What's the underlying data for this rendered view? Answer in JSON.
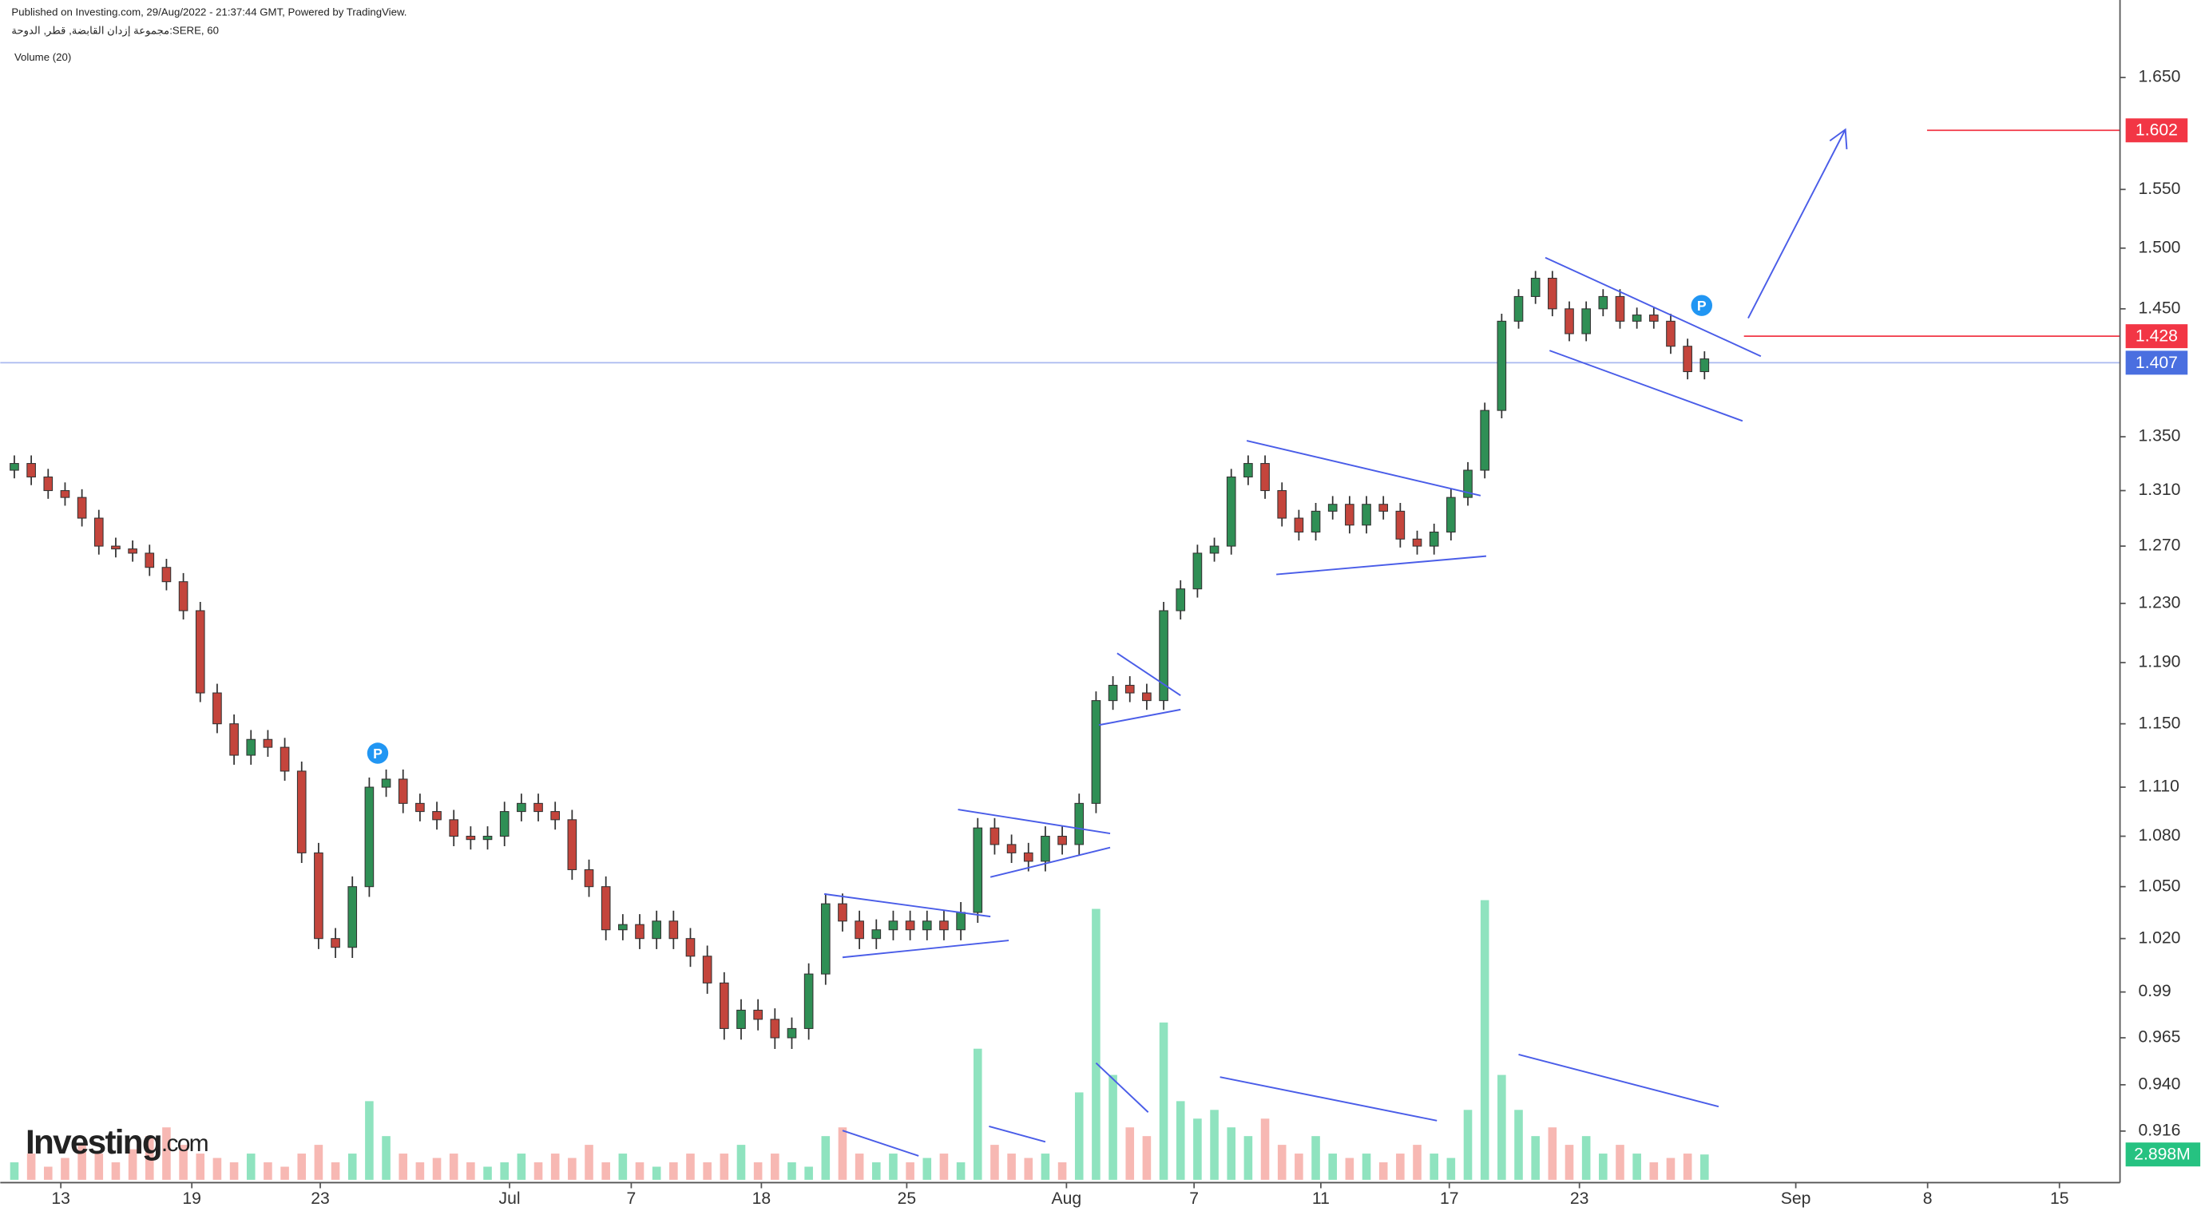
{
  "chart_data": {
    "type": "candlestick",
    "published": "Published on Investing.com, 29/Aug/2022 - 21:37:44 GMT, Powered by TradingView.",
    "symbol": "مجموعة إزدان القابضة, قطر, الدوحة:SERE, 60",
    "volume_title": "Volume (20)",
    "logo": {
      "name": "Investing",
      "suffix": ".com"
    },
    "log_scale": true,
    "xlim": [
      0,
      123
    ],
    "ylim": [
      0.89,
      1.723
    ],
    "volume_lim": [
      0,
      135
    ],
    "up_color": "#2f8f55",
    "down_color": "#c4453c",
    "volume_up_color": "#8fe3bf",
    "volume_down_color": "#f7b8b3",
    "xticks": [
      {
        "value": 2.75,
        "label": "13"
      },
      {
        "value": 10.5,
        "label": "19"
      },
      {
        "value": 18.1,
        "label": "23"
      },
      {
        "value": 29.3,
        "label": "Jul"
      },
      {
        "value": 36.5,
        "label": "7"
      },
      {
        "value": 44.2,
        "label": "18"
      },
      {
        "value": 52.8,
        "label": "25"
      },
      {
        "value": 62.25,
        "label": "Aug"
      },
      {
        "value": 69.8,
        "label": "7"
      },
      {
        "value": 77.3,
        "label": "11"
      },
      {
        "value": 84.9,
        "label": "17"
      },
      {
        "value": 92.6,
        "label": "23"
      },
      {
        "value": 105.4,
        "label": "Sep"
      },
      {
        "value": 113.2,
        "label": "8"
      },
      {
        "value": 121,
        "label": "15"
      }
    ],
    "yticks": [
      {
        "value": 0.916,
        "label": "0.916"
      },
      {
        "value": 0.94,
        "label": "0.940"
      },
      0.965,
      0.99,
      {
        "value": 1.02,
        "label": "1.020"
      },
      {
        "value": 1.05,
        "label": "1.050"
      },
      {
        "value": 1.08,
        "label": "1.080"
      },
      {
        "value": 1.11,
        "label": "1.110"
      },
      {
        "value": 1.15,
        "label": "1.150"
      },
      {
        "value": 1.19,
        "label": "1.190"
      },
      {
        "value": 1.23,
        "label": "1.230"
      },
      {
        "value": 1.27,
        "label": "1.270"
      },
      {
        "value": 1.31,
        "label": "1.310"
      },
      {
        "value": 1.35,
        "label": "1.350"
      },
      {
        "value": 1.45,
        "label": "1.450"
      },
      {
        "value": 1.5,
        "label": "1.500"
      },
      {
        "value": 1.55,
        "label": "1.550"
      },
      {
        "value": 1.65,
        "label": "1.650"
      }
    ],
    "price_lines": [
      {
        "value": 1.602,
        "color": "#f23645"
      },
      {
        "value": 1.428,
        "color": "#f23645"
      },
      {
        "value": 1.407,
        "color": "#4a6fe0"
      }
    ],
    "markers": [
      "P",
      "P"
    ],
    "open": [
      1.325,
      1.33,
      1.32,
      1.31,
      1.305,
      1.29,
      1.27,
      1.268,
      1.265,
      1.255,
      1.245,
      1.225,
      1.17,
      1.15,
      1.13,
      1.14,
      1.135,
      1.12,
      1.07,
      1.02,
      1.015,
      1.05,
      1.11,
      1.115,
      1.1,
      1.095,
      1.09,
      1.08,
      1.078,
      1.08,
      1.095,
      1.1,
      1.095,
      1.09,
      1.06,
      1.05,
      1.025,
      1.028,
      1.02,
      1.03,
      1.02,
      1.01,
      0.995,
      0.97,
      0.98,
      0.975,
      0.965,
      0.97,
      1.0,
      1.04,
      1.03,
      1.02,
      1.025,
      1.03,
      1.025,
      1.03,
      1.025,
      1.035,
      1.085,
      1.075,
      1.07,
      1.065,
      1.08,
      1.075,
      1.1,
      1.165,
      1.175,
      1.17,
      1.165,
      1.225,
      1.24,
      1.265,
      1.27,
      1.32,
      1.33,
      1.31,
      1.29,
      1.28,
      1.295,
      1.3,
      1.285,
      1.3,
      1.295,
      1.275,
      1.27,
      1.28,
      1.305,
      1.325,
      1.37,
      1.44,
      1.46,
      1.475,
      1.45,
      1.43,
      1.45,
      1.46,
      1.44,
      1.445,
      1.44,
      1.42,
      1.4
    ],
    "high": [
      1.336,
      1.336,
      1.326,
      1.316,
      1.311,
      1.296,
      1.276,
      1.274,
      1.271,
      1.261,
      1.251,
      1.231,
      1.176,
      1.156,
      1.146,
      1.146,
      1.141,
      1.126,
      1.076,
      1.026,
      1.056,
      1.116,
      1.121,
      1.121,
      1.106,
      1.101,
      1.096,
      1.086,
      1.086,
      1.101,
      1.106,
      1.106,
      1.101,
      1.096,
      1.066,
      1.056,
      1.034,
      1.034,
      1.036,
      1.036,
      1.026,
      1.016,
      1.001,
      0.986,
      0.986,
      0.981,
      0.976,
      1.006,
      1.046,
      1.046,
      1.036,
      1.031,
      1.036,
      1.036,
      1.036,
      1.036,
      1.041,
      1.091,
      1.091,
      1.081,
      1.076,
      1.086,
      1.086,
      1.106,
      1.171,
      1.181,
      1.181,
      1.176,
      1.231,
      1.246,
      1.271,
      1.276,
      1.326,
      1.336,
      1.336,
      1.316,
      1.296,
      1.301,
      1.306,
      1.306,
      1.306,
      1.306,
      1.301,
      1.281,
      1.286,
      1.311,
      1.331,
      1.376,
      1.446,
      1.466,
      1.481,
      1.481,
      1.456,
      1.456,
      1.466,
      1.466,
      1.451,
      1.451,
      1.446,
      1.426,
      1.416
    ],
    "low": [
      1.319,
      1.314,
      1.304,
      1.299,
      1.284,
      1.264,
      1.262,
      1.259,
      1.249,
      1.239,
      1.219,
      1.164,
      1.144,
      1.124,
      1.124,
      1.129,
      1.114,
      1.064,
      1.014,
      1.009,
      1.009,
      1.044,
      1.104,
      1.094,
      1.089,
      1.084,
      1.074,
      1.072,
      1.072,
      1.074,
      1.089,
      1.089,
      1.084,
      1.054,
      1.044,
      1.019,
      1.019,
      1.014,
      1.014,
      1.014,
      1.004,
      0.989,
      0.964,
      0.964,
      0.969,
      0.959,
      0.959,
      0.964,
      0.994,
      1.024,
      1.014,
      1.014,
      1.019,
      1.019,
      1.019,
      1.019,
      1.019,
      1.029,
      1.069,
      1.064,
      1.059,
      1.059,
      1.069,
      1.069,
      1.094,
      1.159,
      1.164,
      1.159,
      1.159,
      1.219,
      1.234,
      1.259,
      1.264,
      1.314,
      1.304,
      1.284,
      1.274,
      1.274,
      1.289,
      1.279,
      1.279,
      1.289,
      1.269,
      1.264,
      1.264,
      1.274,
      1.299,
      1.319,
      1.364,
      1.434,
      1.454,
      1.444,
      1.424,
      1.424,
      1.444,
      1.434,
      1.434,
      1.434,
      1.414,
      1.394,
      1.394
    ],
    "close": [
      1.33,
      1.32,
      1.31,
      1.305,
      1.29,
      1.27,
      1.268,
      1.265,
      1.255,
      1.245,
      1.225,
      1.17,
      1.15,
      1.13,
      1.14,
      1.135,
      1.12,
      1.07,
      1.02,
      1.015,
      1.05,
      1.11,
      1.115,
      1.1,
      1.095,
      1.09,
      1.08,
      1.078,
      1.08,
      1.095,
      1.1,
      1.095,
      1.09,
      1.06,
      1.05,
      1.025,
      1.028,
      1.02,
      1.03,
      1.02,
      1.01,
      0.995,
      0.97,
      0.98,
      0.975,
      0.965,
      0.97,
      1.0,
      1.04,
      1.03,
      1.02,
      1.025,
      1.03,
      1.025,
      1.03,
      1.025,
      1.035,
      1.085,
      1.075,
      1.07,
      1.065,
      1.08,
      1.075,
      1.1,
      1.165,
      1.175,
      1.17,
      1.165,
      1.225,
      1.24,
      1.265,
      1.27,
      1.32,
      1.33,
      1.31,
      1.29,
      1.28,
      1.295,
      1.3,
      1.285,
      1.3,
      1.295,
      1.275,
      1.27,
      1.28,
      1.305,
      1.325,
      1.37,
      1.44,
      1.46,
      1.475,
      1.45,
      1.43,
      1.45,
      1.46,
      1.44,
      1.445,
      1.44,
      1.42,
      1.4,
      1.41
    ],
    "volume": [
      2,
      3,
      1.5,
      2.5,
      4,
      3,
      2,
      3.5,
      5,
      6,
      4,
      3,
      2.5,
      2,
      3,
      2,
      1.5,
      3,
      4,
      2,
      3,
      9,
      5,
      3,
      2,
      2.5,
      3,
      2,
      1.5,
      2,
      3,
      2,
      3,
      2.5,
      4,
      2,
      3,
      2,
      1.5,
      2,
      3,
      2,
      3,
      4,
      2,
      3,
      2,
      1.5,
      5,
      6,
      3,
      2,
      3,
      2,
      2.5,
      3,
      2,
      15,
      4,
      3,
      2.5,
      3,
      2,
      10,
      31,
      12,
      6,
      5,
      18,
      9,
      7,
      8,
      6,
      5,
      7,
      4,
      3,
      5,
      3,
      2.5,
      3,
      2,
      3,
      4,
      3,
      2.5,
      8,
      32,
      12,
      8,
      5,
      6,
      4,
      5,
      3,
      4,
      3,
      2,
      2.5,
      3,
      2.898
    ],
    "volume_label_index": 100,
    "volume_label_color": "#26c281",
    "value_labels": {
      "volume_last": "2.898M"
    }
  }
}
